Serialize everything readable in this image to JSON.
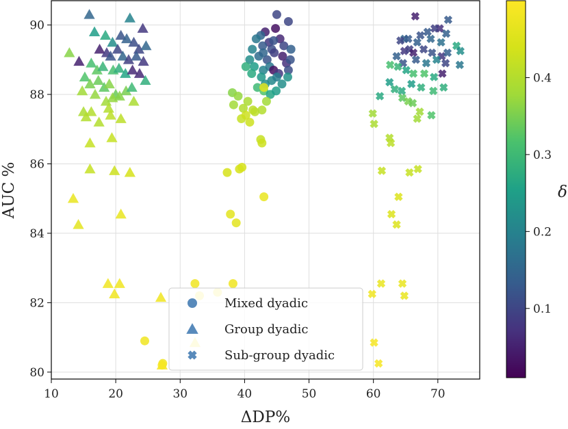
{
  "chart_data": {
    "type": "scatter",
    "xlabel": "ΔDP%",
    "ylabel": "AUC %",
    "xlim": [
      10,
      76.5
    ],
    "ylim": [
      79.8,
      90.7
    ],
    "xticks": [
      10,
      20,
      30,
      40,
      50,
      60,
      70
    ],
    "yticks": [
      80,
      82,
      84,
      86,
      88,
      90
    ],
    "grid": true,
    "legend_position": "bottom-center",
    "colorbar": {
      "label": "δ",
      "range": [
        0.01,
        0.5
      ],
      "ticks": [
        0.1,
        0.2,
        0.3,
        0.4
      ],
      "colormap": "viridis"
    },
    "series": [
      {
        "name": "Mixed dyadic",
        "marker": "circle",
        "legend_color": "#3b75af",
        "points": [
          [
            45,
            90.3,
            0.1
          ],
          [
            46.8,
            90.1,
            0.1
          ],
          [
            43.2,
            89.8,
            0.05
          ],
          [
            44.8,
            89.9,
            0.03
          ],
          [
            42.5,
            89.7,
            0.15
          ],
          [
            41.8,
            89.6,
            0.18
          ],
          [
            43.8,
            89.5,
            0.08
          ],
          [
            45.5,
            89.6,
            0.06
          ],
          [
            42.8,
            89.4,
            0.13
          ],
          [
            44.2,
            89.3,
            0.11
          ],
          [
            46.1,
            89.4,
            0.1
          ],
          [
            47.2,
            89.3,
            0.14
          ],
          [
            41.2,
            89.3,
            0.2
          ],
          [
            40.8,
            89.0,
            0.22
          ],
          [
            42.2,
            89.1,
            0.16
          ],
          [
            43.5,
            89.0,
            0.12
          ],
          [
            44.6,
            89.2,
            0.09
          ],
          [
            45.9,
            89.1,
            0.05
          ],
          [
            46.5,
            88.9,
            0.07
          ],
          [
            41.5,
            88.8,
            0.25
          ],
          [
            42.9,
            88.7,
            0.2
          ],
          [
            43.9,
            88.8,
            0.18
          ],
          [
            44.5,
            88.7,
            0.03
          ],
          [
            45.3,
            88.6,
            0.08
          ],
          [
            46.8,
            88.7,
            0.11
          ],
          [
            40.2,
            88.8,
            0.28
          ],
          [
            41.1,
            88.6,
            0.27
          ],
          [
            42.6,
            88.5,
            0.24
          ],
          [
            43.2,
            88.3,
            0.22
          ],
          [
            44.2,
            88.4,
            0.21
          ],
          [
            45.0,
            88.5,
            0.19
          ],
          [
            46.7,
            88.5,
            0.23
          ],
          [
            42.0,
            88.2,
            0.3
          ],
          [
            43.0,
            88.1,
            0.32
          ],
          [
            44.0,
            88.0,
            0.26
          ],
          [
            44.9,
            88.1,
            0.25
          ],
          [
            45.8,
            88.3,
            0.22
          ],
          [
            47.1,
            89.0,
            0.12
          ],
          [
            42.9,
            89.2,
            0.15
          ],
          [
            44.5,
            89.55,
            0.12
          ],
          [
            38.1,
            88.05,
            0.36
          ],
          [
            38.3,
            87.7,
            0.38
          ],
          [
            39.0,
            87.95,
            0.37
          ],
          [
            39.8,
            87.6,
            0.4
          ],
          [
            40.5,
            87.8,
            0.39
          ],
          [
            41.3,
            87.55,
            0.41
          ],
          [
            39.5,
            87.3,
            0.42
          ],
          [
            40.2,
            87.4,
            0.43
          ],
          [
            40.8,
            87.2,
            0.43
          ],
          [
            41.6,
            87.5,
            0.41
          ],
          [
            42.7,
            87.55,
            0.4
          ],
          [
            43.4,
            87.8,
            0.38
          ],
          [
            42.5,
            86.7,
            0.42
          ],
          [
            42.7,
            86.6,
            0.43
          ],
          [
            43.0,
            88.2,
            0.46
          ],
          [
            37.3,
            85.75,
            0.44
          ],
          [
            39.2,
            85.85,
            0.44
          ],
          [
            39.6,
            85.9,
            0.44
          ],
          [
            37.8,
            84.55,
            0.46
          ],
          [
            38.7,
            84.3,
            0.46
          ],
          [
            43.0,
            85.05,
            0.47
          ],
          [
            32.3,
            82.55,
            0.48
          ],
          [
            38.2,
            82.55,
            0.48
          ],
          [
            35.8,
            82.3,
            0.49
          ],
          [
            33.0,
            82.2,
            0.49
          ],
          [
            24.5,
            80.9,
            0.48
          ],
          [
            27.3,
            80.25,
            0.48
          ],
          [
            27.2,
            80.2,
            0.49
          ]
        ]
      },
      {
        "name": "Group dyadic",
        "marker": "triangle",
        "legend_color": "#3b75af",
        "points": [
          [
            15.9,
            90.3,
            0.15
          ],
          [
            22.2,
            90.2,
            0.2
          ],
          [
            24.2,
            89.9,
            0.08
          ],
          [
            20.8,
            89.7,
            0.12
          ],
          [
            21.7,
            89.6,
            0.14
          ],
          [
            16.7,
            89.8,
            0.25
          ],
          [
            18.4,
            89.7,
            0.27
          ],
          [
            19.5,
            89.5,
            0.22
          ],
          [
            20.3,
            89.3,
            0.1
          ],
          [
            22.8,
            89.5,
            0.11
          ],
          [
            23.6,
            89.3,
            0.1
          ],
          [
            24.7,
            89.4,
            0.15
          ],
          [
            17.5,
            89.3,
            0.05
          ],
          [
            18.6,
            89.2,
            0.08
          ],
          [
            19.2,
            89.1,
            0.12
          ],
          [
            21.1,
            89.1,
            0.15
          ],
          [
            22.0,
            89.0,
            0.09
          ],
          [
            23.2,
            89.1,
            0.13
          ],
          [
            24.3,
            88.95,
            0.08
          ],
          [
            14.3,
            88.95,
            0.05
          ],
          [
            12.8,
            89.2,
            0.36
          ],
          [
            16.2,
            88.9,
            0.31
          ],
          [
            17.1,
            88.7,
            0.33
          ],
          [
            18.0,
            88.8,
            0.29
          ],
          [
            19.6,
            88.7,
            0.31
          ],
          [
            20.5,
            88.75,
            0.28
          ],
          [
            21.5,
            88.6,
            0.26
          ],
          [
            22.6,
            88.7,
            0.06
          ],
          [
            23.7,
            88.6,
            0.06
          ],
          [
            24.6,
            88.4,
            0.28
          ],
          [
            15.2,
            88.5,
            0.32
          ],
          [
            16.0,
            88.3,
            0.35
          ],
          [
            17.3,
            88.4,
            0.34
          ],
          [
            18.2,
            88.2,
            0.33
          ],
          [
            19.0,
            88.3,
            0.36
          ],
          [
            20.0,
            88.0,
            0.34
          ],
          [
            21.6,
            88.1,
            0.35
          ],
          [
            22.5,
            88.2,
            0.3
          ],
          [
            14.8,
            88.1,
            0.38
          ],
          [
            16.8,
            88.0,
            0.37
          ],
          [
            18.5,
            87.8,
            0.38
          ],
          [
            19.5,
            87.9,
            0.37
          ],
          [
            20.6,
            87.95,
            0.36
          ],
          [
            22.8,
            87.8,
            0.39
          ],
          [
            15.0,
            87.5,
            0.39
          ],
          [
            16.2,
            87.5,
            0.4
          ],
          [
            17.4,
            87.2,
            0.4
          ],
          [
            18.9,
            87.6,
            0.4
          ],
          [
            19.2,
            87.4,
            0.41
          ],
          [
            20.8,
            87.3,
            0.41
          ],
          [
            15.4,
            87.35,
            0.4
          ],
          [
            16.0,
            86.6,
            0.42
          ],
          [
            19.4,
            86.75,
            0.42
          ],
          [
            16.0,
            85.85,
            0.42
          ],
          [
            19.8,
            85.8,
            0.43
          ],
          [
            22.2,
            85.75,
            0.44
          ],
          [
            13.4,
            85.0,
            0.47
          ],
          [
            14.2,
            84.25,
            0.46
          ],
          [
            20.8,
            84.55,
            0.47
          ],
          [
            18.8,
            82.55,
            0.48
          ],
          [
            20.6,
            82.55,
            0.48
          ],
          [
            19.8,
            82.25,
            0.48
          ],
          [
            27.0,
            82.15,
            0.48
          ],
          [
            27.2,
            80.2,
            0.49
          ],
          [
            32.3,
            80.85,
            0.49
          ]
        ]
      },
      {
        "name": "Sub-group dyadic",
        "marker": "x",
        "legend_color": "#3b75af",
        "points": [
          [
            66.5,
            90.25,
            0.05
          ],
          [
            71.6,
            90.15,
            0.13
          ],
          [
            70.3,
            89.9,
            0.07
          ],
          [
            64.8,
            89.6,
            0.15
          ],
          [
            67.3,
            89.7,
            0.12
          ],
          [
            68.4,
            89.8,
            0.13
          ],
          [
            69.5,
            89.9,
            0.09
          ],
          [
            71.3,
            89.75,
            0.14
          ],
          [
            64.2,
            89.55,
            0.1
          ],
          [
            65.4,
            89.6,
            0.13
          ],
          [
            66.8,
            89.5,
            0.14
          ],
          [
            68.9,
            89.6,
            0.15
          ],
          [
            70.5,
            89.5,
            0.17
          ],
          [
            72.9,
            89.4,
            0.27
          ],
          [
            73.5,
            89.25,
            0.22
          ],
          [
            64.8,
            89.25,
            0.08
          ],
          [
            65.6,
            89.3,
            0.09
          ],
          [
            66.2,
            89.2,
            0.05
          ],
          [
            67.8,
            89.3,
            0.1
          ],
          [
            69.1,
            89.2,
            0.12
          ],
          [
            70.6,
            89.1,
            0.08
          ],
          [
            71.5,
            89.2,
            0.14
          ],
          [
            63.6,
            89.1,
            0.14
          ],
          [
            64.6,
            88.9,
            0.12
          ],
          [
            66.6,
            89.0,
            0.13
          ],
          [
            68.2,
            88.9,
            0.18
          ],
          [
            69.8,
            89.0,
            0.2
          ],
          [
            71.2,
            88.9,
            0.1
          ],
          [
            73.4,
            88.85,
            0.18
          ],
          [
            62.6,
            88.85,
            0.31
          ],
          [
            63.8,
            88.8,
            0.29
          ],
          [
            65.1,
            88.7,
            0.26
          ],
          [
            66.2,
            88.6,
            0.31
          ],
          [
            67.9,
            88.6,
            0.32
          ],
          [
            69.4,
            88.5,
            0.27
          ],
          [
            70.7,
            88.6,
            0.05
          ],
          [
            62.5,
            88.35,
            0.25
          ],
          [
            63.3,
            88.15,
            0.28
          ],
          [
            64.4,
            88.1,
            0.27
          ],
          [
            65.9,
            88.3,
            0.25
          ],
          [
            67.4,
            88.2,
            0.28
          ],
          [
            69.3,
            88.1,
            0.3
          ],
          [
            70.9,
            88.2,
            0.28
          ],
          [
            61.0,
            87.95,
            0.27
          ],
          [
            64.5,
            87.9,
            0.33
          ],
          [
            65.4,
            87.8,
            0.35
          ],
          [
            66.1,
            87.75,
            0.34
          ],
          [
            67.2,
            87.5,
            0.38
          ],
          [
            66.8,
            87.3,
            0.38
          ],
          [
            69.0,
            87.4,
            0.32
          ],
          [
            59.9,
            87.45,
            0.38
          ],
          [
            60.1,
            87.15,
            0.39
          ],
          [
            62.5,
            86.75,
            0.4
          ],
          [
            62.7,
            86.6,
            0.41
          ],
          [
            61.3,
            85.8,
            0.42
          ],
          [
            65.6,
            85.75,
            0.42
          ],
          [
            66.9,
            85.85,
            0.42
          ],
          [
            63.9,
            85.05,
            0.45
          ],
          [
            62.8,
            84.55,
            0.45
          ],
          [
            63.6,
            84.25,
            0.45
          ],
          [
            61.2,
            82.55,
            0.47
          ],
          [
            64.5,
            82.55,
            0.47
          ],
          [
            59.8,
            82.25,
            0.48
          ],
          [
            64.8,
            82.2,
            0.47
          ],
          [
            60.1,
            80.85,
            0.49
          ],
          [
            60.8,
            80.25,
            0.49
          ]
        ]
      }
    ]
  }
}
